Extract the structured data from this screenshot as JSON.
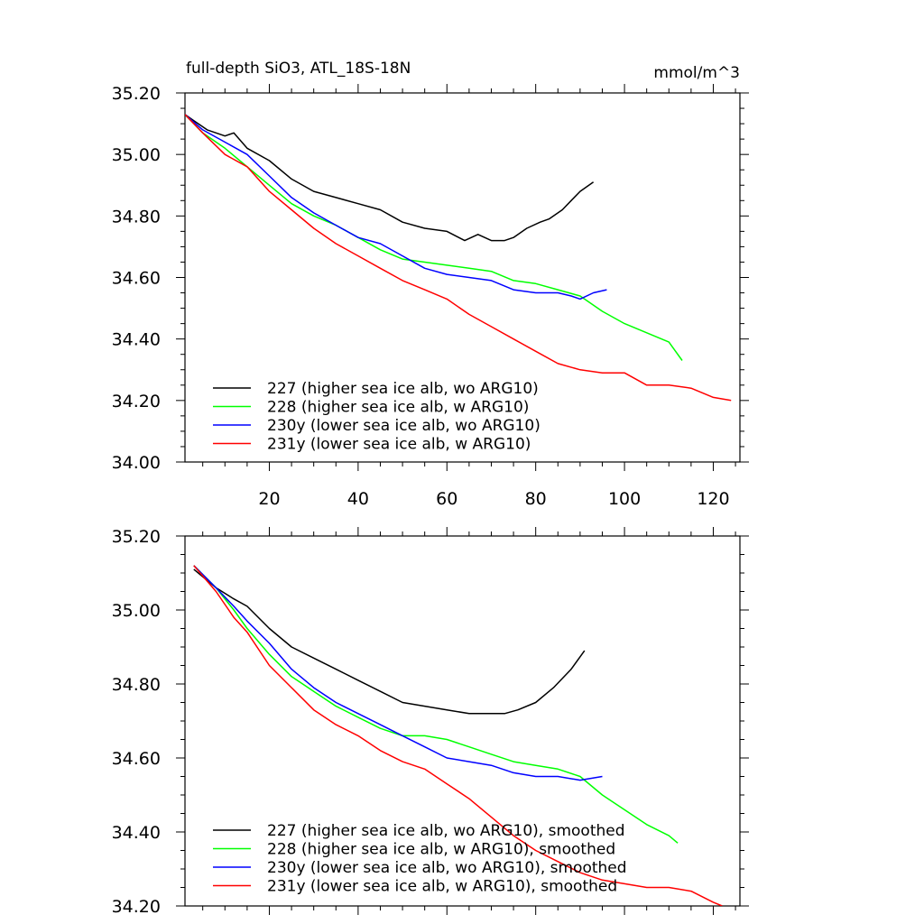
{
  "colors": {
    "227": "#000000",
    "228": "#00ff00",
    "230y": "#0000ff",
    "231y": "#ff0000"
  },
  "chart_data": [
    {
      "type": "line",
      "title": "full-depth SiO3, ATL_18S-18N",
      "units": "mmol/m^3",
      "xlim": [
        1,
        126
      ],
      "ylim": [
        34.0,
        35.2
      ],
      "x_ticks": [
        "20",
        "40",
        "60",
        "80",
        "100",
        "120"
      ],
      "y_ticks": [
        "34.00",
        "34.20",
        "34.40",
        "34.60",
        "34.80",
        "35.00",
        "35.20"
      ],
      "legend_position": "bottom-left",
      "series": [
        {
          "name": "227 (higher sea ice alb, wo ARG10)",
          "color_key": "227",
          "x": [
            1,
            3,
            6,
            10,
            12,
            15,
            20,
            25,
            30,
            35,
            40,
            45,
            50,
            55,
            60,
            64,
            67,
            70,
            73,
            75,
            78,
            81,
            83,
            86,
            88,
            90,
            93
          ],
          "y": [
            35.13,
            35.11,
            35.08,
            35.06,
            35.07,
            35.02,
            34.98,
            34.92,
            34.88,
            34.86,
            34.84,
            34.82,
            34.78,
            34.76,
            34.75,
            34.72,
            34.74,
            34.72,
            34.72,
            34.73,
            34.76,
            34.78,
            34.79,
            34.82,
            34.85,
            34.88,
            34.91
          ]
        },
        {
          "name": "228 (higher sea ice alb, w ARG10)",
          "color_key": "228",
          "x": [
            1,
            5,
            10,
            15,
            20,
            25,
            30,
            35,
            40,
            45,
            50,
            55,
            60,
            65,
            70,
            75,
            80,
            85,
            90,
            95,
            100,
            105,
            110,
            113
          ],
          "y": [
            35.13,
            35.07,
            35.02,
            34.96,
            34.9,
            34.84,
            34.8,
            34.77,
            34.73,
            34.69,
            34.66,
            34.65,
            34.64,
            34.63,
            34.62,
            34.59,
            34.58,
            34.56,
            34.54,
            34.49,
            34.45,
            34.42,
            34.39,
            34.33
          ]
        },
        {
          "name": "230y (lower sea ice alb, wo ARG10)",
          "color_key": "230y",
          "x": [
            1,
            5,
            10,
            15,
            20,
            25,
            30,
            35,
            40,
            45,
            50,
            55,
            60,
            65,
            70,
            75,
            80,
            85,
            88,
            90,
            93,
            96
          ],
          "y": [
            35.13,
            35.08,
            35.04,
            35.0,
            34.93,
            34.86,
            34.81,
            34.77,
            34.73,
            34.71,
            34.67,
            34.63,
            34.61,
            34.6,
            34.59,
            34.56,
            34.55,
            34.55,
            34.54,
            34.53,
            34.55,
            34.56
          ]
        },
        {
          "name": "231y (lower sea ice alb, w ARG10)",
          "color_key": "231y",
          "x": [
            1,
            5,
            10,
            15,
            20,
            25,
            30,
            35,
            40,
            45,
            50,
            55,
            60,
            65,
            70,
            75,
            80,
            85,
            90,
            95,
            100,
            105,
            110,
            115,
            120,
            124
          ],
          "y": [
            35.13,
            35.07,
            35.0,
            34.96,
            34.88,
            34.82,
            34.76,
            34.71,
            34.67,
            34.63,
            34.59,
            34.56,
            34.53,
            34.48,
            34.44,
            34.4,
            34.36,
            34.32,
            34.3,
            34.29,
            34.29,
            34.25,
            34.25,
            34.24,
            34.21,
            34.2
          ]
        }
      ]
    },
    {
      "type": "line",
      "xlim": [
        1,
        126
      ],
      "ylim": [
        34.2,
        35.2
      ],
      "y_ticks": [
        "34.20",
        "34.40",
        "34.60",
        "34.80",
        "35.00",
        "35.20"
      ],
      "legend_position": "bottom-left",
      "series": [
        {
          "name": "227 (higher sea ice alb, wo ARG10), smoothed",
          "color_key": "227",
          "x": [
            3,
            8,
            12,
            15,
            20,
            25,
            30,
            35,
            40,
            45,
            50,
            55,
            60,
            65,
            70,
            73,
            76,
            80,
            84,
            88,
            91
          ],
          "y": [
            35.11,
            35.06,
            35.03,
            35.01,
            34.95,
            34.9,
            34.87,
            34.84,
            34.81,
            34.78,
            34.75,
            34.74,
            34.73,
            34.72,
            34.72,
            34.72,
            34.73,
            34.75,
            34.79,
            34.84,
            34.89
          ]
        },
        {
          "name": "228 (higher sea ice alb, w ARG10), smoothed",
          "color_key": "228",
          "x": [
            3,
            8,
            12,
            15,
            20,
            25,
            30,
            35,
            40,
            45,
            50,
            55,
            60,
            65,
            70,
            75,
            80,
            85,
            90,
            95,
            100,
            105,
            110,
            112
          ],
          "y": [
            35.12,
            35.06,
            35.0,
            34.95,
            34.88,
            34.82,
            34.78,
            34.74,
            34.71,
            34.68,
            34.66,
            34.66,
            34.65,
            34.63,
            34.61,
            34.59,
            34.58,
            34.57,
            34.55,
            34.5,
            34.46,
            34.42,
            34.39,
            34.37
          ]
        },
        {
          "name": "230y (lower sea ice alb, wo ARG10), smoothed",
          "color_key": "230y",
          "x": [
            3,
            8,
            12,
            15,
            20,
            25,
            30,
            35,
            40,
            45,
            50,
            55,
            60,
            65,
            70,
            75,
            80,
            85,
            90,
            95
          ],
          "y": [
            35.12,
            35.06,
            35.01,
            34.97,
            34.91,
            34.84,
            34.79,
            34.75,
            34.72,
            34.69,
            34.66,
            34.63,
            34.6,
            34.59,
            34.58,
            34.56,
            34.55,
            34.55,
            34.54,
            34.55
          ]
        },
        {
          "name": "231y (lower sea ice alb, w ARG10), smoothed",
          "color_key": "231y",
          "x": [
            3,
            8,
            12,
            15,
            20,
            25,
            30,
            35,
            40,
            45,
            50,
            55,
            60,
            65,
            70,
            75,
            80,
            85,
            90,
            95,
            100,
            105,
            110,
            115,
            120,
            122
          ],
          "y": [
            35.12,
            35.05,
            34.98,
            34.94,
            34.85,
            34.79,
            34.73,
            34.69,
            34.66,
            34.62,
            34.59,
            34.57,
            34.53,
            34.49,
            34.44,
            34.39,
            34.35,
            34.32,
            34.29,
            34.27,
            34.26,
            34.25,
            34.25,
            34.24,
            34.21,
            34.2
          ]
        }
      ]
    }
  ]
}
